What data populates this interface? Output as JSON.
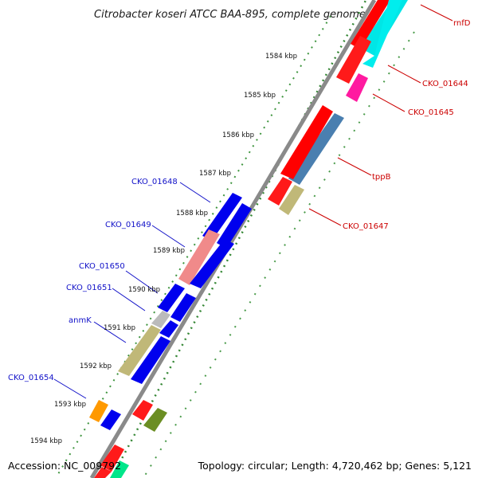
{
  "title": "Citrobacter koseri ATCC BAA-895, complete genome",
  "footer": {
    "accession": "Accession: NC_009792",
    "topology": "Topology: circular; Length: 4,720,462 bp; Genes: 5,121"
  },
  "ticks": [
    "1584 kbp",
    "1585 kbp",
    "1586 kbp",
    "1587 kbp",
    "1588 kbp",
    "1589 kbp",
    "1590 kbp",
    "1591 kbp",
    "1592 kbp",
    "1593 kbp",
    "1594 kbp"
  ],
  "left_labels": [
    "CKO_01648",
    "CKO_01649",
    "CKO_01650",
    "CKO_01651",
    "anmK",
    "CKO_01654"
  ],
  "right_labels": [
    "rnfD",
    "CKO_01644",
    "CKO_01645",
    "tppB",
    "CKO_01647"
  ],
  "colors": {
    "left_label": "#1010c8",
    "right_label": "#cc0000",
    "backbone": "#777777",
    "dotted_ring": "#1f7a1f"
  }
}
